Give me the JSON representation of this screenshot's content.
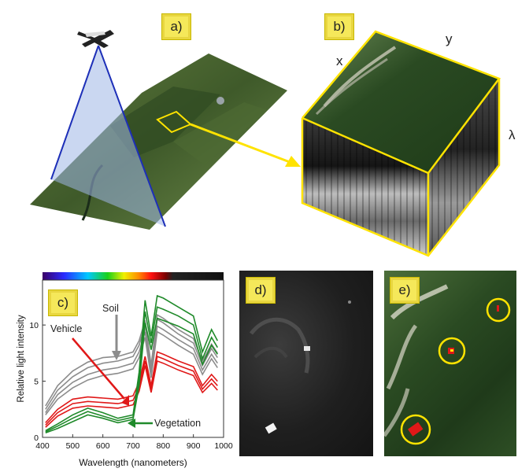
{
  "panels": {
    "a": {
      "label": "a)"
    },
    "b": {
      "label": "b)",
      "axes": {
        "x": "x",
        "y": "y",
        "lambda": "λ"
      }
    },
    "c": {
      "label": "c)"
    },
    "d": {
      "label": "d)"
    },
    "e": {
      "label": "e)"
    }
  },
  "chart_data": {
    "type": "line",
    "title": "",
    "xlabel": "Wavelength (nanometers)",
    "ylabel": "Relative light intensity",
    "xlim": [
      400,
      1000
    ],
    "ylim": [
      0,
      14
    ],
    "xticks": [
      400,
      500,
      600,
      700,
      800,
      900,
      1000
    ],
    "yticks": [
      0,
      5,
      10
    ],
    "grid": false,
    "annotations": [
      "Soil",
      "Vehicle",
      "Vegetation"
    ],
    "colors": {
      "soil": "#8c8c8c",
      "vehicle": "#e01818",
      "vegetation": "#1f8a2a"
    },
    "series": [
      {
        "group": "soil",
        "x": [
          410,
          450,
          500,
          550,
          600,
          650,
          700,
          720,
          740,
          760,
          780,
          800,
          850,
          900,
          930,
          960,
          980
        ],
        "values": [
          2.8,
          4.6,
          5.9,
          6.7,
          7.1,
          7.2,
          7.6,
          8.6,
          10.4,
          6.4,
          10.9,
          10.6,
          9.6,
          8.8,
          6.8,
          8.3,
          7.5
        ]
      },
      {
        "group": "soil",
        "x": [
          410,
          450,
          500,
          550,
          600,
          650,
          700,
          720,
          740,
          760,
          780,
          800,
          850,
          900,
          930,
          960,
          980
        ],
        "values": [
          2.5,
          4.2,
          5.4,
          6.2,
          6.6,
          6.8,
          7.2,
          8.2,
          10.0,
          6.0,
          10.5,
          10.2,
          9.2,
          8.4,
          6.4,
          7.9,
          7.1
        ]
      },
      {
        "group": "soil",
        "x": [
          410,
          450,
          500,
          550,
          600,
          650,
          700,
          720,
          740,
          760,
          780,
          800,
          850,
          900,
          930,
          960,
          980
        ],
        "values": [
          2.2,
          3.8,
          4.9,
          5.6,
          6.0,
          6.2,
          6.6,
          7.6,
          9.4,
          5.6,
          9.9,
          9.6,
          8.7,
          7.9,
          6.0,
          7.4,
          6.6
        ]
      },
      {
        "group": "soil",
        "x": [
          410,
          450,
          500,
          550,
          600,
          650,
          700,
          720,
          740,
          760,
          780,
          800,
          850,
          900,
          930,
          960,
          980
        ],
        "values": [
          2.0,
          3.4,
          4.4,
          5.1,
          5.5,
          5.7,
          6.1,
          7.1,
          8.9,
          5.3,
          9.4,
          9.1,
          8.2,
          7.4,
          5.6,
          7.0,
          6.2
        ]
      },
      {
        "group": "vehicle",
        "x": [
          410,
          450,
          500,
          550,
          600,
          650,
          700,
          720,
          740,
          760,
          780,
          800,
          850,
          900,
          930,
          960,
          980
        ],
        "values": [
          1.3,
          2.5,
          3.4,
          3.6,
          3.5,
          3.4,
          3.7,
          4.9,
          7.2,
          4.6,
          7.6,
          7.4,
          6.8,
          6.3,
          4.6,
          5.6,
          5.0
        ]
      },
      {
        "group": "vehicle",
        "x": [
          410,
          450,
          500,
          550,
          600,
          650,
          700,
          720,
          740,
          760,
          780,
          800,
          850,
          900,
          930,
          960,
          980
        ],
        "values": [
          1.1,
          2.2,
          3.0,
          3.2,
          3.1,
          3.0,
          3.3,
          4.5,
          6.8,
          4.3,
          7.2,
          7.0,
          6.4,
          5.9,
          4.3,
          5.2,
          4.6
        ]
      },
      {
        "group": "vehicle",
        "x": [
          410,
          450,
          500,
          550,
          600,
          650,
          700,
          720,
          740,
          760,
          780,
          800,
          850,
          900,
          930,
          960,
          980
        ],
        "values": [
          0.9,
          1.9,
          2.6,
          2.8,
          2.7,
          2.6,
          2.9,
          4.1,
          6.4,
          4.0,
          6.8,
          6.6,
          6.0,
          5.5,
          4.0,
          4.8,
          4.2
        ]
      },
      {
        "group": "vegetation",
        "x": [
          410,
          450,
          500,
          550,
          600,
          650,
          700,
          720,
          740,
          760,
          780,
          800,
          850,
          900,
          930,
          960,
          980
        ],
        "values": [
          0.6,
          1.2,
          2.0,
          2.6,
          2.2,
          1.7,
          2.0,
          5.8,
          12.2,
          9.0,
          12.6,
          12.4,
          11.6,
          10.8,
          7.6,
          9.6,
          8.6
        ]
      },
      {
        "group": "vegetation",
        "x": [
          410,
          450,
          500,
          550,
          600,
          650,
          700,
          720,
          740,
          760,
          780,
          800,
          850,
          900,
          930,
          960,
          980
        ],
        "values": [
          0.5,
          1.0,
          1.7,
          2.3,
          1.9,
          1.5,
          1.8,
          5.2,
          11.2,
          8.4,
          11.6,
          11.4,
          10.8,
          10.0,
          7.0,
          8.9,
          8.0
        ]
      },
      {
        "group": "vegetation",
        "x": [
          410,
          450,
          500,
          550,
          600,
          650,
          700,
          720,
          740,
          760,
          780,
          800,
          850,
          900,
          930,
          960,
          980
        ],
        "values": [
          0.4,
          0.8,
          1.4,
          2.0,
          1.7,
          1.3,
          1.6,
          4.6,
          10.2,
          7.8,
          10.6,
          10.4,
          9.9,
          9.2,
          6.5,
          8.2,
          7.4
        ]
      }
    ]
  }
}
